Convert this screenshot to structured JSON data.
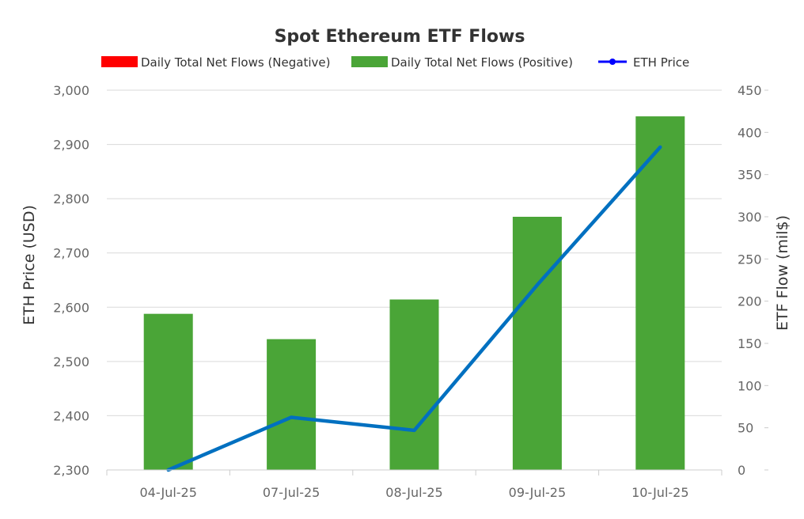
{
  "chart_data": {
    "type": "bar",
    "title": "Spot Ethereum ETF Flows",
    "categories": [
      "04-Jul-25",
      "07-Jul-25",
      "08-Jul-25",
      "09-Jul-25",
      "10-Jul-25"
    ],
    "series": [
      {
        "name": "Daily Total Net Flows (Negative)",
        "type": "bar",
        "axis": "right",
        "color": "#ff0000",
        "values": [
          0,
          0,
          0,
          0,
          0
        ]
      },
      {
        "name": "Daily Total Net Flows (Positive)",
        "type": "bar",
        "axis": "right",
        "color": "#4aa537",
        "values": [
          185,
          155,
          202,
          300,
          419
        ]
      },
      {
        "name": "ETH Price",
        "type": "line",
        "axis": "left",
        "color": "#0070c0",
        "values": [
          2300,
          2397,
          2373,
          2641,
          2895
        ]
      }
    ],
    "ylabel_left": "ETH Price (USD)",
    "ylabel_right": "ETF Flow (mil$)",
    "ylim_left": [
      2300,
      3000
    ],
    "ylim_right": [
      0,
      450
    ],
    "yticks_left": [
      "2,300",
      "2,400",
      "2,500",
      "2,600",
      "2,700",
      "2,800",
      "2,900",
      "3,000"
    ],
    "yticks_right": [
      "0",
      "50",
      "100",
      "150",
      "200",
      "250",
      "300",
      "350",
      "400",
      "450"
    ],
    "legend_position": "top",
    "grid": true
  }
}
